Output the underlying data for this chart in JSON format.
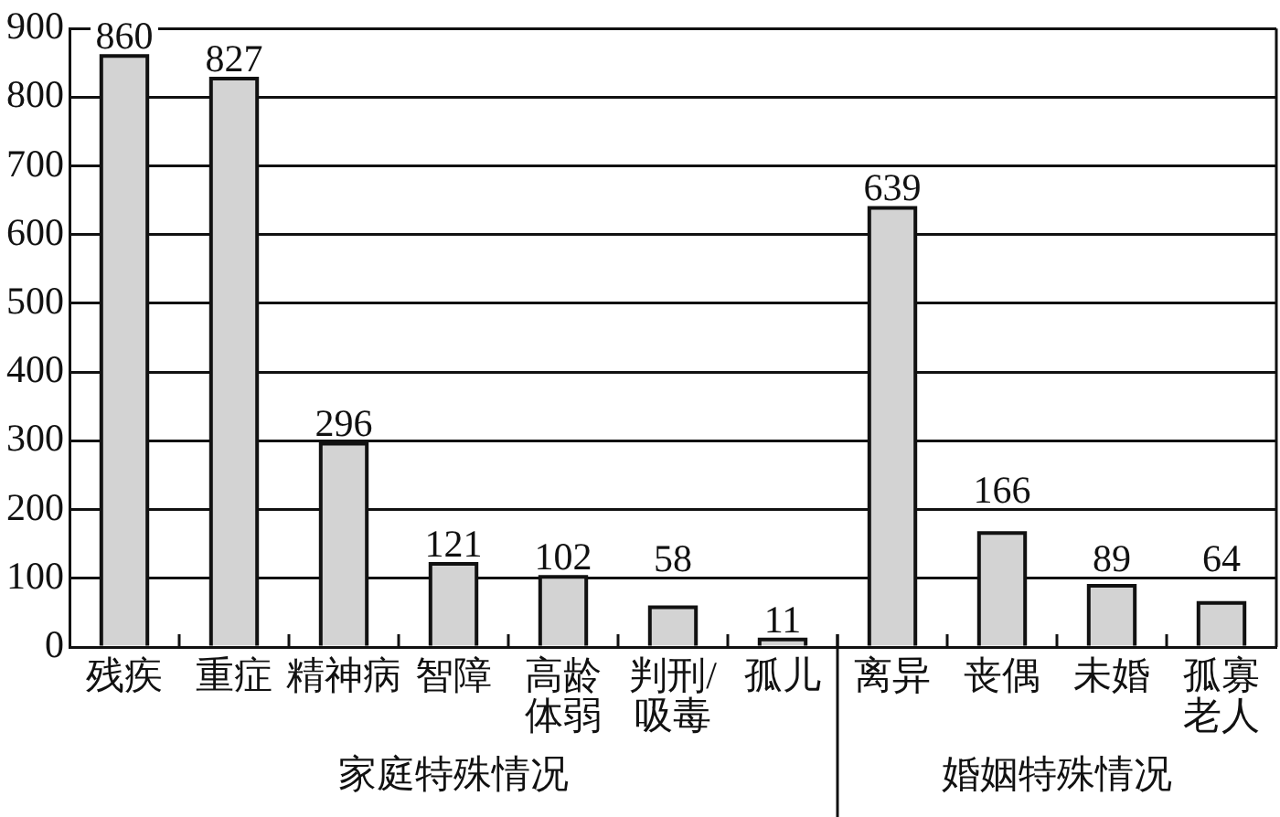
{
  "chart_data": {
    "type": "bar",
    "categories": [
      "残疾",
      "重症",
      "精神病",
      "智障",
      "高龄体弱",
      "判刑/吸毒",
      "孤儿",
      "离异",
      "丧偶",
      "未婚",
      "孤寡老人"
    ],
    "values": [
      860,
      827,
      296,
      121,
      102,
      58,
      11,
      639,
      166,
      89,
      64
    ],
    "color": "#d3d3d3",
    "ylim": [
      0,
      900
    ],
    "yticks": [
      0,
      100,
      200,
      300,
      400,
      500,
      600,
      700,
      800,
      900
    ],
    "grid": "y",
    "data_labels": true,
    "annotations": [
      "家庭特殊情况",
      "婚姻特殊情况"
    ]
  }
}
